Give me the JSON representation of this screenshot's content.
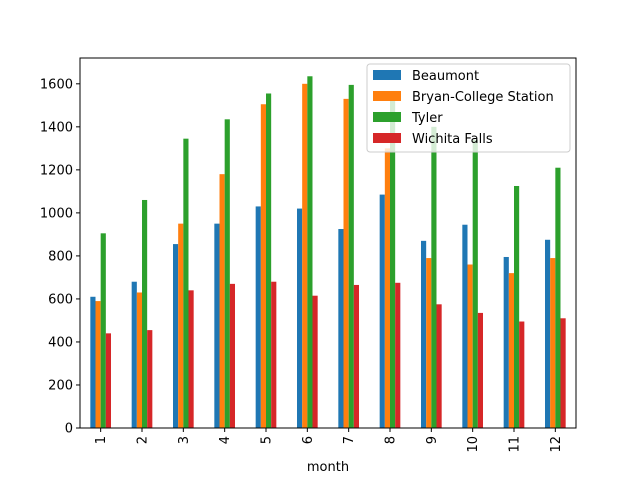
{
  "chart_data": {
    "type": "bar",
    "title": "",
    "xlabel": "month",
    "ylabel": "",
    "ylim": [
      0,
      1720
    ],
    "yticks": [
      0,
      200,
      400,
      600,
      800,
      1000,
      1200,
      1400,
      1600
    ],
    "categories": [
      "1",
      "2",
      "3",
      "4",
      "5",
      "6",
      "7",
      "8",
      "9",
      "10",
      "11",
      "12"
    ],
    "legend_position": "top-right",
    "series": [
      {
        "name": "Beaumont",
        "color": "#1f77b4",
        "values": [
          610,
          680,
          855,
          950,
          1030,
          1020,
          925,
          1085,
          870,
          945,
          795,
          875
        ]
      },
      {
        "name": "Bryan-College Station",
        "color": "#ff7f0e",
        "values": [
          590,
          630,
          950,
          1180,
          1505,
          1600,
          1530,
          1300,
          790,
          760,
          720,
          790
        ]
      },
      {
        "name": "Tyler",
        "color": "#2ca02c",
        "values": [
          905,
          1060,
          1345,
          1435,
          1555,
          1635,
          1595,
          1520,
          1400,
          1340,
          1125,
          1210
        ]
      },
      {
        "name": "Wichita Falls",
        "color": "#d62728",
        "values": [
          440,
          455,
          640,
          670,
          680,
          615,
          665,
          675,
          575,
          535,
          495,
          510
        ]
      }
    ]
  }
}
